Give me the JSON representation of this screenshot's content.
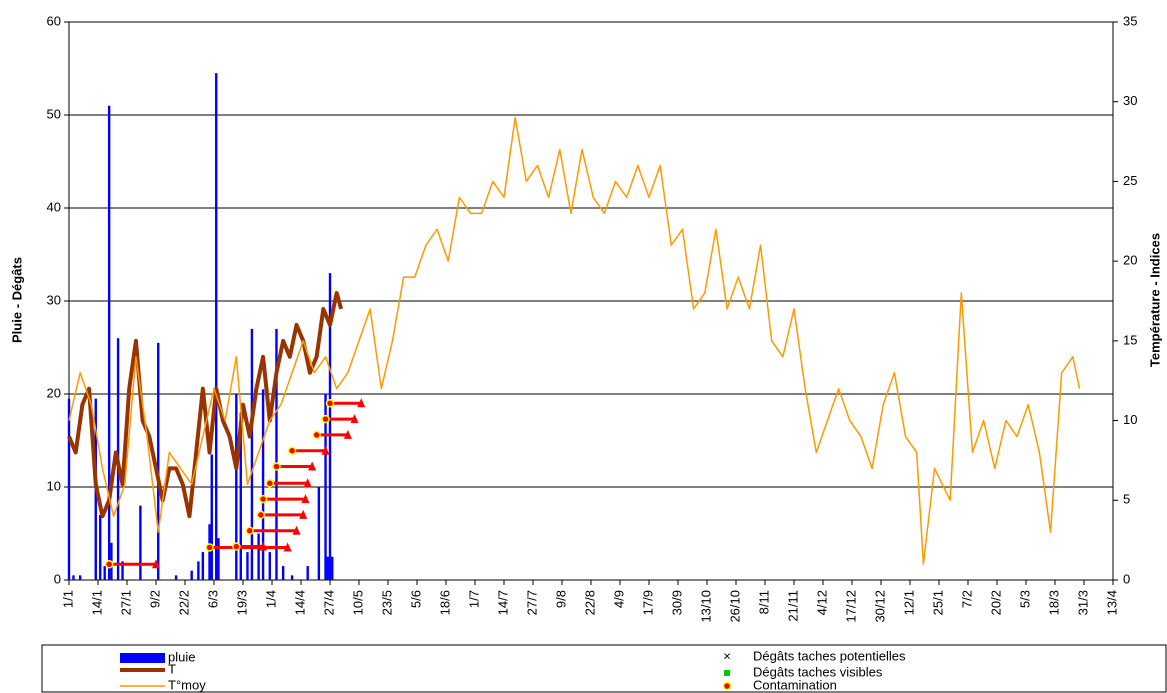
{
  "chart_data": {
    "type": "combo",
    "y_label": "Pluie - Dégâts",
    "y2_label": "Température - Indices",
    "xlim": [
      0,
      468
    ],
    "xticks": [
      {
        "value": 0,
        "label": "1/1"
      },
      {
        "value": 13,
        "label": "14/1"
      },
      {
        "value": 26,
        "label": "27/1"
      },
      {
        "value": 39,
        "label": "9/2"
      },
      {
        "value": 52,
        "label": "22/2"
      },
      {
        "value": 65,
        "label": "6/3"
      },
      {
        "value": 78,
        "label": "19/3"
      },
      {
        "value": 91,
        "label": "1/4"
      },
      {
        "value": 104,
        "label": "14/4"
      },
      {
        "value": 117,
        "label": "27/4"
      },
      {
        "value": 130,
        "label": "10/5"
      },
      {
        "value": 143,
        "label": "23/5"
      },
      {
        "value": 156,
        "label": "5/6"
      },
      {
        "value": 169,
        "label": "18/6"
      },
      {
        "value": 182,
        "label": "1/7"
      },
      {
        "value": 195,
        "label": "14/7"
      },
      {
        "value": 208,
        "label": "27/7"
      },
      {
        "value": 221,
        "label": "9/8"
      },
      {
        "value": 234,
        "label": "22/8"
      },
      {
        "value": 247,
        "label": "4/9"
      },
      {
        "value": 260,
        "label": "17/9"
      },
      {
        "value": 273,
        "label": "30/9"
      },
      {
        "value": 286,
        "label": "13/10"
      },
      {
        "value": 299,
        "label": "26/10"
      },
      {
        "value": 312,
        "label": "8/11"
      },
      {
        "value": 325,
        "label": "21/11"
      },
      {
        "value": 338,
        "label": "4/12"
      },
      {
        "value": 351,
        "label": "17/12"
      },
      {
        "value": 364,
        "label": "30/12"
      },
      {
        "value": 377,
        "label": "12/1"
      },
      {
        "value": 390,
        "label": "25/1"
      },
      {
        "value": 403,
        "label": "7/2"
      },
      {
        "value": 416,
        "label": "20/2"
      },
      {
        "value": 429,
        "label": "5/3"
      },
      {
        "value": 442,
        "label": "18/3"
      },
      {
        "value": 455,
        "label": "31/3"
      },
      {
        "value": 468,
        "label": "13/4"
      }
    ],
    "ylim": [
      0,
      60
    ],
    "yticks": [
      0,
      10,
      20,
      30,
      40,
      50,
      60
    ],
    "y2lim": [
      0,
      35
    ],
    "y2ticks": [
      0,
      5,
      10,
      15,
      20,
      25,
      30,
      35
    ],
    "grid": true,
    "series": [
      {
        "name": "pluie",
        "kind": "bar",
        "color": "#0000ff",
        "x": [
          0,
          2,
          5,
          12,
          14,
          16,
          18,
          19,
          22,
          24,
          32,
          40,
          48,
          55,
          58,
          60,
          63,
          64,
          66,
          67,
          75,
          77,
          80,
          82,
          85,
          87,
          90,
          93,
          96,
          100,
          107,
          112,
          115,
          116,
          117,
          118
        ],
        "values": [
          19.5,
          0.5,
          0.5,
          19.5,
          7,
          1.5,
          51,
          4,
          26,
          2,
          8,
          25.5,
          0.5,
          1,
          2,
          3,
          6,
          13.5,
          54.5,
          4.5,
          20,
          18,
          3,
          27,
          5,
          20.5,
          3,
          27,
          1.5,
          0.5,
          1.5,
          10,
          20,
          2.5,
          33,
          2.5
        ]
      },
      {
        "name": "T",
        "kind": "line",
        "axis": "y2",
        "color": "#993300",
        "width": 4,
        "x": [
          0,
          3,
          6,
          9,
          12,
          15,
          18,
          21,
          24,
          27,
          30,
          33,
          36,
          39,
          42,
          45,
          48,
          51,
          54,
          57,
          60,
          63,
          66,
          69,
          72,
          75,
          78,
          81,
          84,
          87,
          90,
          93,
          96,
          99,
          102,
          105,
          108,
          111,
          114,
          117,
          120,
          122
        ],
        "values": [
          9,
          8,
          11,
          12,
          6,
          4,
          5,
          8,
          6,
          12,
          15,
          10,
          9,
          7,
          5,
          7,
          7,
          6,
          4,
          8,
          12,
          8,
          12,
          10,
          9,
          7,
          11,
          9,
          12,
          14,
          10,
          13,
          15,
          14,
          16,
          15,
          13,
          14,
          17,
          16,
          18,
          17
        ]
      },
      {
        "name": "T°moy",
        "kind": "line",
        "axis": "y2",
        "color": "#ff9900",
        "width": 1.5,
        "x": [
          0,
          5,
          10,
          15,
          20,
          25,
          30,
          35,
          40,
          45,
          50,
          55,
          60,
          65,
          70,
          75,
          80,
          85,
          90,
          95,
          100,
          105,
          110,
          115,
          120,
          125,
          130,
          135,
          140,
          145,
          150,
          155,
          160,
          165,
          170,
          175,
          180,
          185,
          190,
          195,
          200,
          205,
          210,
          215,
          220,
          225,
          230,
          235,
          240,
          245,
          250,
          255,
          260,
          265,
          270,
          275,
          280,
          285,
          290,
          295,
          300,
          305,
          310,
          315,
          320,
          325,
          330,
          335,
          340,
          345,
          350,
          355,
          360,
          365,
          370,
          375,
          380,
          383,
          388,
          395,
          400,
          405,
          410,
          415,
          420,
          425,
          430,
          435,
          440,
          445,
          450,
          453
        ],
        "values": [
          10,
          13,
          11,
          7,
          4,
          6,
          14,
          9,
          3,
          8,
          7,
          6,
          9,
          12,
          10,
          14,
          6,
          8,
          10,
          11,
          13,
          15,
          13,
          14,
          12,
          13,
          15,
          17,
          12,
          15,
          19,
          19,
          21,
          22,
          20,
          24,
          23,
          23,
          25,
          24,
          29,
          25,
          26,
          24,
          27,
          23,
          27,
          24,
          23,
          25,
          24,
          26,
          24,
          26,
          21,
          22,
          17,
          18,
          22,
          17,
          19,
          17,
          21,
          15,
          14,
          17,
          12,
          8,
          10,
          12,
          10,
          9,
          7,
          11,
          13,
          9,
          8,
          1,
          7,
          5,
          18,
          8,
          10,
          7,
          10,
          9,
          11,
          8,
          3,
          13,
          14,
          12
        ]
      },
      {
        "name": "Dégâts taches potentielles",
        "kind": "scatter",
        "marker": "x",
        "color": "#008000",
        "x": [],
        "values": []
      },
      {
        "name": "Dégâts taches visibles",
        "kind": "scatter",
        "marker": "square",
        "color": "#00cc00",
        "x": [],
        "values": []
      },
      {
        "name": "Contamination",
        "kind": "segment",
        "color": "#ff0000",
        "marker_edge": "#ffff00",
        "x": [
          18,
          63,
          75,
          81,
          86,
          87,
          90,
          93,
          100,
          111,
          115,
          117
        ],
        "x_end": [
          39,
          98,
          87,
          102,
          105,
          106,
          107,
          109,
          115,
          125,
          128,
          131
        ],
        "values": [
          1.7,
          3.5,
          3.6,
          5.3,
          7,
          8.7,
          10.4,
          12.2,
          13.9,
          15.6,
          17.3,
          19
        ]
      }
    ]
  }
}
